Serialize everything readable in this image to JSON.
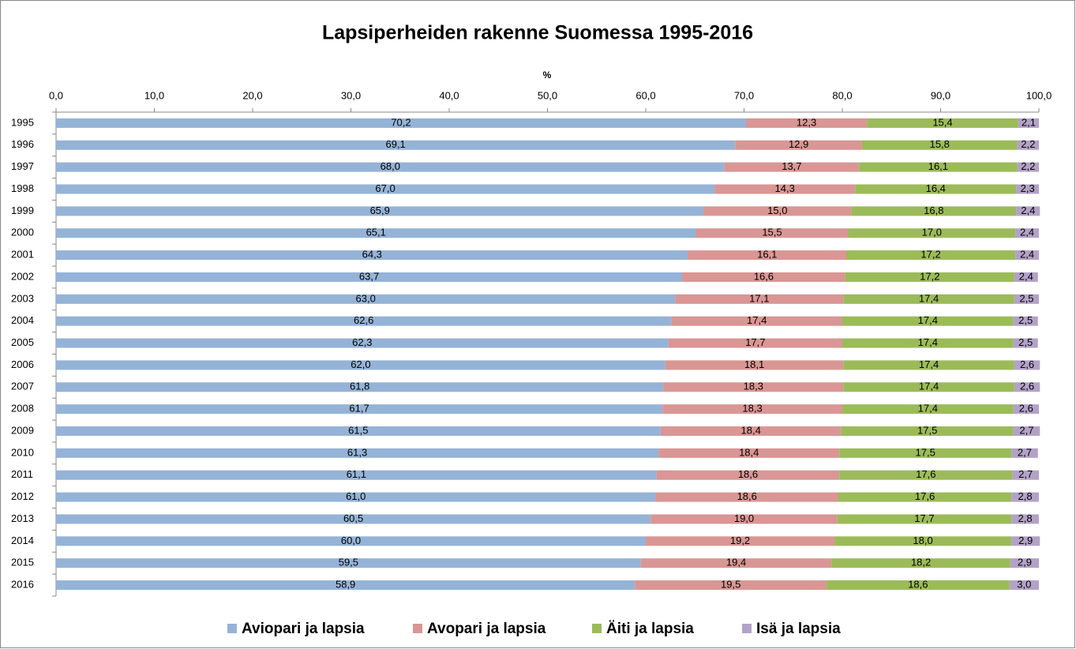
{
  "chart_data": {
    "type": "stacked_barh",
    "title": "Lapsiperheiden rakenne Suomessa 1995-2016",
    "x_label": "%",
    "categories": [
      "1995",
      "1996",
      "1997",
      "1998",
      "1999",
      "2000",
      "2001",
      "2002",
      "2003",
      "2004",
      "2005",
      "2006",
      "2007",
      "2008",
      "2009",
      "2010",
      "2011",
      "2012",
      "2013",
      "2014",
      "2015",
      "2016"
    ],
    "series": [
      {
        "name": "Aviopari ja lapsia",
        "color": "#95b3d7",
        "values": [
          70.2,
          69.1,
          68.0,
          67.0,
          65.9,
          65.1,
          64.3,
          63.7,
          63.0,
          62.6,
          62.3,
          62.0,
          61.8,
          61.7,
          61.5,
          61.3,
          61.1,
          61.0,
          60.5,
          60.0,
          59.5,
          58.9
        ],
        "value_labels": [
          "70,2",
          "69,1",
          "68,0",
          "67,0",
          "65,9",
          "65,1",
          "64,3",
          "63,7",
          "63,0",
          "62,6",
          "62,3",
          "62,0",
          "61,8",
          "61,7",
          "61,5",
          "61,3",
          "61,1",
          "61,0",
          "60,5",
          "60,0",
          "59,5",
          "58,9"
        ]
      },
      {
        "name": "Avopari ja lapsia",
        "color": "#d99694",
        "values": [
          12.3,
          12.9,
          13.7,
          14.3,
          15.0,
          15.5,
          16.1,
          16.6,
          17.1,
          17.4,
          17.7,
          18.1,
          18.3,
          18.3,
          18.4,
          18.4,
          18.6,
          18.6,
          19.0,
          19.2,
          19.4,
          19.5
        ],
        "value_labels": [
          "12,3",
          "12,9",
          "13,7",
          "14,3",
          "15,0",
          "15,5",
          "16,1",
          "16,6",
          "17,1",
          "17,4",
          "17,7",
          "18,1",
          "18,3",
          "18,3",
          "18,4",
          "18,4",
          "18,6",
          "18,6",
          "19,0",
          "19,2",
          "19,4",
          "19,5"
        ]
      },
      {
        "name": "Äiti ja lapsia",
        "color": "#9bbb59",
        "values": [
          15.4,
          15.8,
          16.1,
          16.4,
          16.8,
          17.0,
          17.2,
          17.2,
          17.4,
          17.4,
          17.4,
          17.4,
          17.4,
          17.4,
          17.5,
          17.5,
          17.6,
          17.6,
          17.7,
          18.0,
          18.2,
          18.6
        ],
        "value_labels": [
          "15,4",
          "15,8",
          "16,1",
          "16,4",
          "16,8",
          "17,0",
          "17,2",
          "17,2",
          "17,4",
          "17,4",
          "17,4",
          "17,4",
          "17,4",
          "17,4",
          "17,5",
          "17,5",
          "17,6",
          "17,6",
          "17,7",
          "18,0",
          "18,2",
          "18,6"
        ]
      },
      {
        "name": "Isä ja lapsia",
        "color": "#b3a2c7",
        "values": [
          2.1,
          2.2,
          2.2,
          2.3,
          2.4,
          2.4,
          2.4,
          2.4,
          2.5,
          2.5,
          2.5,
          2.6,
          2.6,
          2.6,
          2.7,
          2.7,
          2.7,
          2.8,
          2.8,
          2.9,
          2.9,
          3.0
        ],
        "value_labels": [
          "2,1",
          "2,2",
          "2,2",
          "2,3",
          "2,4",
          "2,4",
          "2,4",
          "2,4",
          "2,5",
          "2,5",
          "2,5",
          "2,6",
          "2,6",
          "2,6",
          "2,7",
          "2,7",
          "2,7",
          "2,8",
          "2,8",
          "2,9",
          "2,9",
          "3,0"
        ]
      }
    ],
    "xlim": [
      0,
      100
    ],
    "xticks": [
      {
        "value": 0,
        "label": "0,0"
      },
      {
        "value": 10,
        "label": "10,0"
      },
      {
        "value": 20,
        "label": "20,0"
      },
      {
        "value": 30,
        "label": "30,0"
      },
      {
        "value": 40,
        "label": "40,0"
      },
      {
        "value": 50,
        "label": "50,0"
      },
      {
        "value": 60,
        "label": "60,0"
      },
      {
        "value": 70,
        "label": "70,0"
      },
      {
        "value": 80,
        "label": "80,0"
      },
      {
        "value": 90,
        "label": "90,0"
      },
      {
        "value": 100,
        "label": "100,0"
      }
    ],
    "legend": "bottom"
  }
}
